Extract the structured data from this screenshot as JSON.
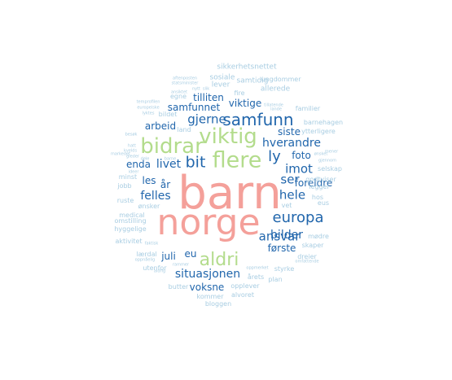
{
  "palette": {
    "red": "#f4a09a",
    "green": "#b3dc8c",
    "blue": "#2166ac",
    "lightblue": "#a8cde2"
  },
  "words": [
    {
      "text": "barn",
      "color": "red"
    },
    {
      "text": "norge",
      "color": "red"
    },
    {
      "text": "bidrar",
      "color": "green"
    },
    {
      "text": "viktig",
      "color": "green"
    },
    {
      "text": "flere",
      "color": "green"
    },
    {
      "text": "aldri",
      "color": "green"
    },
    {
      "text": "samfunn",
      "color": "blue"
    },
    {
      "text": "europa",
      "color": "blue"
    },
    {
      "text": "bit",
      "color": "blue"
    },
    {
      "text": "ly",
      "color": "blue"
    },
    {
      "text": "gjerne",
      "color": "blue"
    },
    {
      "text": "hverandre",
      "color": "blue"
    },
    {
      "text": "imot",
      "color": "blue"
    },
    {
      "text": "ser",
      "color": "blue"
    },
    {
      "text": "hele",
      "color": "blue"
    },
    {
      "text": "ansvar",
      "color": "blue"
    },
    {
      "text": "felles",
      "color": "blue"
    },
    {
      "text": "bilder",
      "color": "blue"
    },
    {
      "text": "livet",
      "color": "blue"
    },
    {
      "text": "situasjonen",
      "color": "blue"
    },
    {
      "text": "arbeid",
      "color": "blue"
    },
    {
      "text": "samfunnet",
      "color": "blue"
    },
    {
      "text": "tilliten",
      "color": "blue"
    },
    {
      "text": "viktige",
      "color": "blue"
    },
    {
      "text": "siste",
      "color": "blue"
    },
    {
      "text": "foto",
      "color": "blue"
    },
    {
      "text": "enda",
      "color": "blue"
    },
    {
      "text": "les",
      "color": "blue"
    },
    {
      "text": "år",
      "color": "blue"
    },
    {
      "text": "foreldre",
      "color": "blue"
    },
    {
      "text": "første",
      "color": "blue"
    },
    {
      "text": "juli",
      "color": "blue"
    },
    {
      "text": "eu",
      "color": "blue"
    },
    {
      "text": "voksne",
      "color": "blue"
    },
    {
      "text": "sikkerhetsnettet",
      "color": "lightblue"
    },
    {
      "text": "sosiale",
      "color": "lightblue"
    },
    {
      "text": "lever",
      "color": "lightblue"
    },
    {
      "text": "samtidig",
      "color": "lightblue"
    },
    {
      "text": "ungdommer",
      "color": "lightblue"
    },
    {
      "text": "fire",
      "color": "lightblue"
    },
    {
      "text": "allerede",
      "color": "lightblue"
    },
    {
      "text": "egne",
      "color": "lightblue"
    },
    {
      "text": "familier",
      "color": "lightblue"
    },
    {
      "text": "barnehagen",
      "color": "lightblue"
    },
    {
      "text": "ytterligere",
      "color": "lightblue"
    },
    {
      "text": "land",
      "color": "lightblue"
    },
    {
      "text": "bildet",
      "color": "lightblue"
    },
    {
      "text": "godtviser",
      "color": "lightblue"
    },
    {
      "text": "selskap",
      "color": "lightblue"
    },
    {
      "text": "legger",
      "color": "lightblue"
    },
    {
      "text": "hos",
      "color": "lightblue"
    },
    {
      "text": "eus",
      "color": "lightblue"
    },
    {
      "text": "vet",
      "color": "lightblue"
    },
    {
      "text": "minst",
      "color": "lightblue"
    },
    {
      "text": "jobb",
      "color": "lightblue"
    },
    {
      "text": "ruste",
      "color": "lightblue"
    },
    {
      "text": "ønsker",
      "color": "lightblue"
    },
    {
      "text": "medical",
      "color": "lightblue"
    },
    {
      "text": "omstilling",
      "color": "lightblue"
    },
    {
      "text": "hyggelige",
      "color": "lightblue"
    },
    {
      "text": "aktivitet",
      "color": "lightblue"
    },
    {
      "text": "mødre",
      "color": "lightblue"
    },
    {
      "text": "skaper",
      "color": "lightblue"
    },
    {
      "text": "lærdal",
      "color": "lightblue"
    },
    {
      "text": "utenfor",
      "color": "lightblue"
    },
    {
      "text": "dreier",
      "color": "lightblue"
    },
    {
      "text": "styrke",
      "color": "lightblue"
    },
    {
      "text": "årets",
      "color": "lightblue"
    },
    {
      "text": "plan",
      "color": "lightblue"
    },
    {
      "text": "butter",
      "color": "lightblue"
    },
    {
      "text": "opplever",
      "color": "lightblue"
    },
    {
      "text": "alvoret",
      "color": "lightblue"
    },
    {
      "text": "kommer",
      "color": "lightblue"
    },
    {
      "text": "bloggen",
      "color": "lightblue"
    },
    {
      "text": "aftenposten",
      "color": "lightblue"
    },
    {
      "text": "statsminister",
      "color": "lightblue"
    },
    {
      "text": "nytt",
      "color": "lightblue"
    },
    {
      "text": "slik",
      "color": "lightblue"
    },
    {
      "text": "ansiktet",
      "color": "lightblue"
    },
    {
      "text": "temprofilen",
      "color": "lightblue"
    },
    {
      "text": "europeiske",
      "color": "lightblue"
    },
    {
      "text": "lyktes",
      "color": "lightblue"
    },
    {
      "text": "tillatende",
      "color": "lightblue"
    },
    {
      "text": "lande",
      "color": "lightblue"
    },
    {
      "text": "besøk",
      "color": "lightblue"
    },
    {
      "text": "hatt",
      "color": "lightblue"
    },
    {
      "text": "kvelds",
      "color": "lightblue"
    },
    {
      "text": "gleder",
      "color": "lightblue"
    },
    {
      "text": "markedet",
      "color": "lightblue"
    },
    {
      "text": "ønsket",
      "color": "lightblue"
    },
    {
      "text": "ideer",
      "color": "lightblue"
    },
    {
      "text": "mener",
      "color": "lightblue"
    },
    {
      "text": "gjennom",
      "color": "lightblue"
    },
    {
      "text": "dele",
      "color": "lightblue"
    },
    {
      "text": "barne",
      "color": "lightblue"
    },
    {
      "text": "faktisk",
      "color": "lightblue"
    },
    {
      "text": "oppmerket",
      "color": "lightblue"
    },
    {
      "text": "rammer",
      "color": "lightblue"
    },
    {
      "text": "oppnåelig",
      "color": "lightblue"
    },
    {
      "text": "aldrig",
      "color": "lightblue"
    },
    {
      "text": "omfattende",
      "color": "lightblue"
    }
  ]
}
